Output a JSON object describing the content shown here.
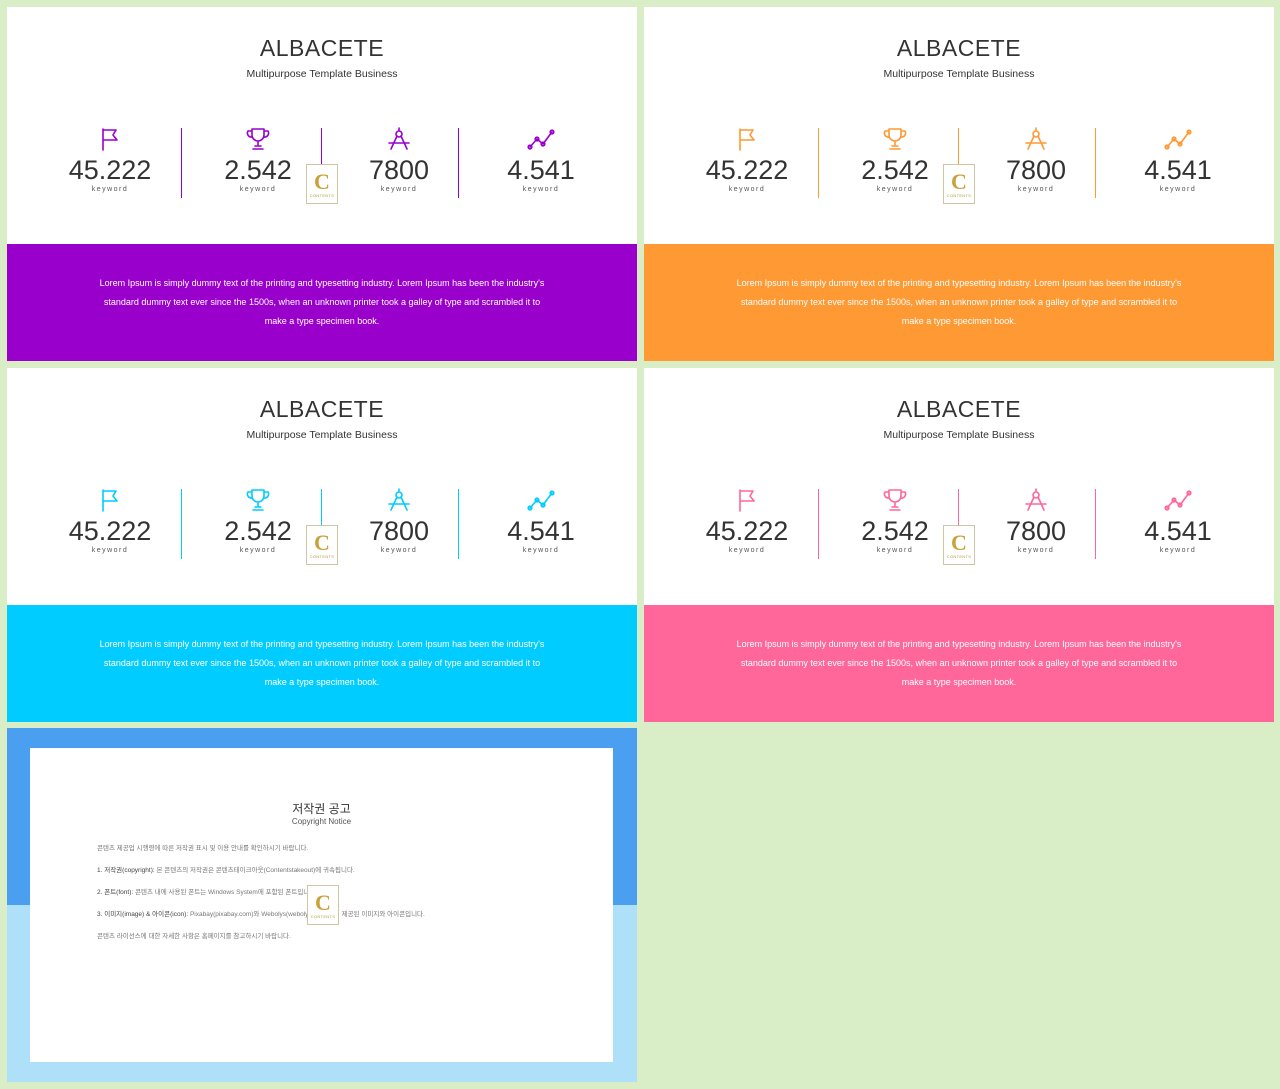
{
  "slides": [
    {
      "title": "ALBACETE",
      "subtitle": "Multipurpose Template Business",
      "accent": "#9900cc",
      "stats": [
        {
          "icon": "flag-icon",
          "value": "45.222",
          "label": "keyword"
        },
        {
          "icon": "trophy-icon",
          "value": "2.542",
          "label": "keyword"
        },
        {
          "icon": "compass-icon",
          "value": "7800",
          "label": "keyword"
        },
        {
          "icon": "chart-line-icon",
          "value": "4.541",
          "label": "keyword"
        }
      ],
      "body": "Lorem Ipsum is simply dummy text of the printing and typesetting industry. Lorem Ipsum has been the industry's standard dummy text ever since the 1500s, when an unknown printer took a galley of type and scrambled it to make a type specimen book."
    },
    {
      "title": "ALBACETE",
      "subtitle": "Multipurpose Template Business",
      "accent": "#ff9933",
      "stats": [
        {
          "icon": "flag-icon",
          "value": "45.222",
          "label": "keyword"
        },
        {
          "icon": "trophy-icon",
          "value": "2.542",
          "label": "keyword"
        },
        {
          "icon": "compass-icon",
          "value": "7800",
          "label": "keyword"
        },
        {
          "icon": "chart-line-icon",
          "value": "4.541",
          "label": "keyword"
        }
      ],
      "body": "Lorem Ipsum is simply dummy text of the printing and typesetting industry. Lorem Ipsum has been the industry's standard dummy text ever since the 1500s, when an unknown printer took a galley of type and scrambled it to make a type specimen book."
    },
    {
      "title": "ALBACETE",
      "subtitle": "Multipurpose Template Business",
      "accent": "#00ccff",
      "stats": [
        {
          "icon": "flag-icon",
          "value": "45.222",
          "label": "keyword"
        },
        {
          "icon": "trophy-icon",
          "value": "2.542",
          "label": "keyword"
        },
        {
          "icon": "compass-icon",
          "value": "7800",
          "label": "keyword"
        },
        {
          "icon": "chart-line-icon",
          "value": "4.541",
          "label": "keyword"
        }
      ],
      "body": "Lorem Ipsum is simply dummy text of the printing and typesetting industry. Lorem Ipsum has been the industry's standard dummy text ever since the 1500s, when an unknown printer took a galley of type and scrambled it to make a type specimen book."
    },
    {
      "title": "ALBACETE",
      "subtitle": "Multipurpose Template Business",
      "accent": "#ff6699",
      "stats": [
        {
          "icon": "flag-icon",
          "value": "45.222",
          "label": "keyword"
        },
        {
          "icon": "trophy-icon",
          "value": "2.542",
          "label": "keyword"
        },
        {
          "icon": "compass-icon",
          "value": "7800",
          "label": "keyword"
        },
        {
          "icon": "chart-line-icon",
          "value": "4.541",
          "label": "keyword"
        }
      ],
      "body": "Lorem Ipsum is simply dummy text of the printing and typesetting industry. Lorem Ipsum has been the industry's standard dummy text ever since the 1500s, when an unknown printer took a galley of type and scrambled it to make a type specimen book."
    }
  ],
  "logo": {
    "letter": "C",
    "text": "CONTENTS"
  },
  "copyright": {
    "title": "저작권 공고",
    "subtitle": "Copyright Notice",
    "paragraphs": [
      {
        "lead": "",
        "text": "콘텐츠 제공업 시행령에 따른 저작권 표시 및 이용 안내를 확인하시기 바랍니다."
      },
      {
        "lead": "1. 저작권(copyright):",
        "text": "본 콘텐츠의 저작권은 콘텐츠테이크아웃(Contentstakeout)에 귀속됩니다."
      },
      {
        "lead": "2. 폰트(font):",
        "text": "콘텐츠 내에 사용된 폰트는 Windows System에 포함된 폰트입니다."
      },
      {
        "lead": "3. 이미지(image) & 아이콘(icon):",
        "text": "Pixabay(pixabay.com)와 Webolys(webolys.com)에서 제공된 이미지와 아이콘입니다."
      },
      {
        "lead": "",
        "text": "콘텐츠 라이선스에 대한 자세한 사항은 홈페이지를 참고하시기 바랍니다."
      }
    ]
  }
}
